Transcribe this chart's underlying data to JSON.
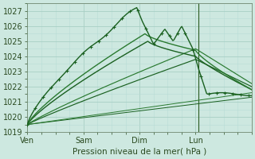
{
  "xlabel": "Pression niveau de la mer( hPa )",
  "bg_color": "#cde8e0",
  "grid_color_major": "#a8cfc4",
  "grid_color_minor": "#b8ddd6",
  "line_colors": [
    "#1a6020",
    "#2a7a30",
    "#1a6020",
    "#2a7a30",
    "#1a6020",
    "#2a7a30",
    "#1a6020"
  ],
  "ylim": [
    1019.0,
    1027.5
  ],
  "xlim": [
    0.0,
    4.0
  ],
  "xtick_pos": [
    0.0,
    1.0,
    2.0,
    3.0
  ],
  "xtick_labels": [
    "Ven",
    "Sam",
    "Dim",
    "Lun"
  ],
  "yticks": [
    1019,
    1020,
    1021,
    1022,
    1023,
    1024,
    1025,
    1026,
    1027
  ],
  "vline_x": 3.05
}
